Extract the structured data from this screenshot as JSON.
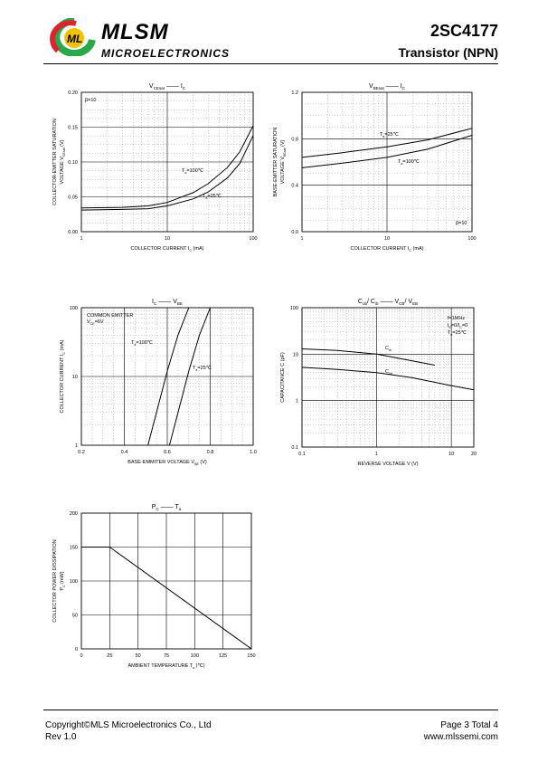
{
  "header": {
    "brand": "MLSM",
    "subtitle": "MICROELECTRONICS",
    "part": "2SC4177",
    "type": "Transistor  (NPN)"
  },
  "footer": {
    "copyright": "Copyright©MLS Microelectronics Co., Ltd",
    "rev": "Rev 1.0",
    "page": "Page 3 Total 4",
    "url": "www.mlssemi.com"
  },
  "colors": {
    "logo_red": "#d7262e",
    "logo_green": "#2aa84a",
    "logo_yellow": "#f2c200"
  },
  "chart_data": [
    {
      "type": "line",
      "title_main": "V",
      "title_sub": "CEsat",
      "title_dash": "——",
      "title_main2": "I",
      "title_sub2": "C",
      "xscale": "log",
      "xlim": [
        1,
        100
      ],
      "ylim": [
        0,
        0.2
      ],
      "xticks": [
        "1",
        "10",
        "100"
      ],
      "yticks": [
        "0.00",
        "0.05",
        "0.10",
        "0.15",
        "0.20"
      ],
      "xlabel": "COLLECTOR CURRENT    I",
      "xlabel_sub": "C",
      "xlabel_unit": "(mA)",
      "ylabel1": "COLLECTOR-EMITTER SATURATION",
      "ylabel2": "VOLTAGE   V",
      "ylabel2_sub": "CEsat",
      "ylabel2_unit": "(V)",
      "annot": "β=10",
      "series": [
        {
          "name_main": "T",
          "name_sub": "a",
          "name_rest": "=100℃",
          "x": [
            1,
            3,
            6,
            10,
            20,
            30,
            50,
            70,
            100
          ],
          "y": [
            0.034,
            0.035,
            0.037,
            0.042,
            0.056,
            0.069,
            0.092,
            0.115,
            0.152
          ]
        },
        {
          "name_main": "T",
          "name_sub": "a",
          "name_rest": "=25℃",
          "x": [
            1,
            3,
            6,
            10,
            20,
            30,
            50,
            70,
            100
          ],
          "y": [
            0.031,
            0.032,
            0.033,
            0.037,
            0.047,
            0.057,
            0.077,
            0.098,
            0.138
          ]
        }
      ]
    },
    {
      "type": "line",
      "title_main": "V",
      "title_sub": "BEsat",
      "title_dash": "——",
      "title_main2": "I",
      "title_sub2": "C",
      "xscale": "log",
      "xlim": [
        1,
        100
      ],
      "ylim": [
        0,
        1.2
      ],
      "xticks": [
        "1",
        "10",
        "100"
      ],
      "yticks": [
        "0.0",
        "0.4",
        "0.8",
        "1.2"
      ],
      "xlabel": "COLLECTOR CURRENT    I",
      "xlabel_sub": "C",
      "xlabel_unit": "(mA)",
      "ylabel1": "BASE-EMITTER SATURATION",
      "ylabel2": "VOLTAGE   V",
      "ylabel2_sub": "BEsat",
      "ylabel2_unit": "(V)",
      "annot": "β=10",
      "series": [
        {
          "name_main": "T",
          "name_sub": "a",
          "name_rest": "=25℃",
          "x": [
            1,
            3,
            10,
            30,
            100
          ],
          "y": [
            0.64,
            0.68,
            0.73,
            0.79,
            0.89
          ]
        },
        {
          "name_main": "T",
          "name_sub": "a",
          "name_rest": "=100℃",
          "x": [
            1,
            3,
            10,
            30,
            100
          ],
          "y": [
            0.55,
            0.59,
            0.64,
            0.71,
            0.83
          ]
        }
      ]
    },
    {
      "type": "line",
      "title_main": "I",
      "title_sub": "C",
      "title_dash": "——",
      "title_main2": "V",
      "title_sub2": "BE",
      "xscale": "linear",
      "yscale": "log",
      "xlim": [
        0.2,
        1.0
      ],
      "ylim": [
        1,
        100
      ],
      "xticks": [
        "0.2",
        "0.4",
        "0.6",
        "0.8",
        "1.0"
      ],
      "yticks": [
        "1",
        "10",
        "100"
      ],
      "xlabel": "BASE-EMMITER VOLTAGE  V",
      "xlabel_sub": "BE",
      "xlabel_unit": "(V)",
      "ylabel1": "",
      "ylabel2": "COLLECTOR CURRENT    I",
      "ylabel2_sub": "C",
      "ylabel2_unit": "(mA)",
      "annot": "COMMON EMITTER",
      "annot2_main": "V",
      "annot2_sub": "CE",
      "annot2_rest": "=6V",
      "series": [
        {
          "name_main": "T",
          "name_sub": "a",
          "name_rest": "=100℃",
          "x": [
            0.51,
            0.55,
            0.6,
            0.65,
            0.7
          ],
          "y": [
            1,
            3,
            12,
            40,
            100
          ]
        },
        {
          "name_main": "T",
          "name_sub": "a",
          "name_rest": "=25℃",
          "x": [
            0.61,
            0.65,
            0.7,
            0.75,
            0.8
          ],
          "y": [
            1,
            3,
            12,
            40,
            100
          ]
        }
      ]
    },
    {
      "type": "line",
      "title_main": "C",
      "title_sub": "ob",
      "title_dash_pre": "/ C",
      "title_sub_b": "ib",
      "title_dash": "——",
      "title_main2": "V",
      "title_sub2": "CB",
      "title_rest2": "/ V",
      "title_sub3": "EB",
      "xscale": "log",
      "yscale": "log",
      "xlim": [
        0.1,
        20
      ],
      "ylim": [
        0.1,
        100
      ],
      "xticks": [
        "0.1",
        "1",
        "10",
        "20"
      ],
      "yticks": [
        "0.1",
        "1",
        "10",
        "100"
      ],
      "xlabel": "REVERSE VOLTAGE    V",
      "xlabel_unit": "(V)",
      "ylabel1": "",
      "ylabel2": "CAPACITANCE    C",
      "ylabel2_sub": "",
      "ylabel2_unit": "(pF)",
      "annot": "f=1MHz",
      "annot2_main": "I",
      "annot2_sub": "E",
      "annot2_rest": "=0/I",
      "annot2_sub2": "C",
      "annot2_rest2": "=0",
      "annot3_main": "T",
      "annot3_sub": "a",
      "annot3_rest": "=25℃",
      "series": [
        {
          "name_main": "C",
          "name_sub": "ib",
          "name_rest": "",
          "x": [
            0.1,
            0.3,
            1,
            3,
            6
          ],
          "y": [
            13,
            12,
            10,
            7.2,
            5.8
          ]
        },
        {
          "name_main": "C",
          "name_sub": "ob",
          "name_rest": "",
          "x": [
            0.1,
            0.3,
            1,
            3,
            10,
            20
          ],
          "y": [
            5.2,
            4.7,
            4,
            3.1,
            2.1,
            1.7
          ]
        }
      ]
    },
    {
      "type": "line",
      "title_main": "P",
      "title_sub": "C",
      "title_dash": "——",
      "title_main2": "T",
      "title_sub2": "a",
      "xscale": "linear",
      "xlim": [
        0,
        150
      ],
      "ylim": [
        0,
        200
      ],
      "xticks": [
        "0",
        "25",
        "50",
        "75",
        "100",
        "125",
        "150"
      ],
      "yticks": [
        "0",
        "50",
        "100",
        "150",
        "200"
      ],
      "xlabel": "AMBIENT TEMPERATURE    T",
      "xlabel_sub": "a",
      "xlabel_unit": "(℃)",
      "ylabel1": "COLLECTOR POWER DISSIPATION",
      "ylabel2": "P",
      "ylabel2_sub": "C",
      "ylabel2_unit": "(mW)",
      "series": [
        {
          "x": [
            0,
            25,
            150
          ],
          "y": [
            150,
            150,
            0
          ]
        }
      ]
    }
  ]
}
